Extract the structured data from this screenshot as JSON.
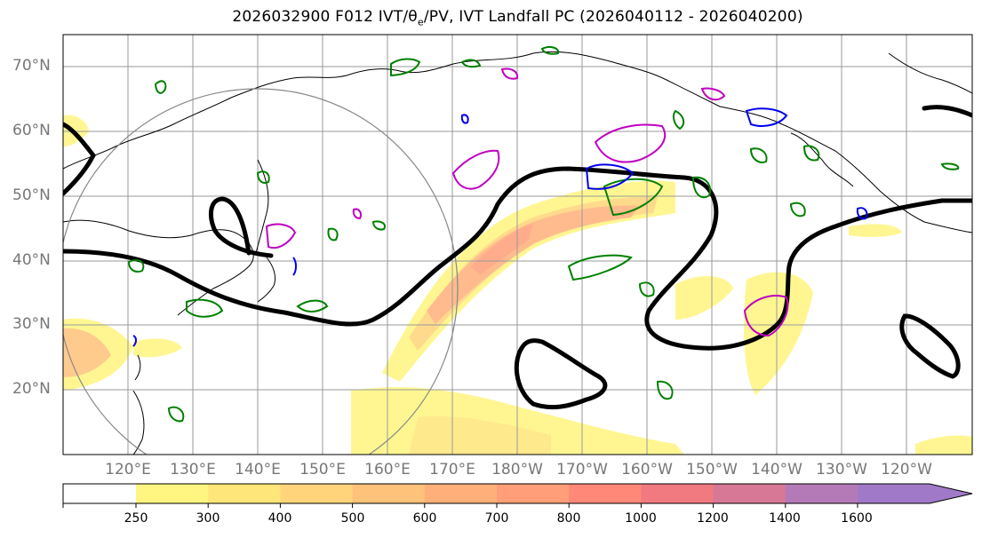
{
  "title": "2026032900 F012 IVT/θe/PV, IVT Landfall PC (2026040112 - 2026040200)",
  "map": {
    "projection": "PlateCarree",
    "lon_range": "110E - 110W",
    "lat_range": "10N - 75N",
    "lat_labels": [
      "70°N",
      "60°N",
      "50°N",
      "40°N",
      "30°N",
      "20°N"
    ],
    "lon_labels": [
      "120°E",
      "130°E",
      "140°E",
      "150°E",
      "160°E",
      "170°E",
      "180°W",
      "170°W",
      "160°W",
      "150°W",
      "140°W",
      "130°W",
      "120°W"
    ],
    "gridlines": true,
    "contours": {
      "theta_e": {
        "color": "#000000"
      },
      "pv_green": {
        "color": "#008000"
      },
      "pv_blue": {
        "color": "#0000ee"
      },
      "pv_magenta": {
        "color": "#c000c0"
      }
    },
    "range_circle_color": "#888888"
  },
  "colorbar": {
    "ticks": [
      "250",
      "300",
      "400",
      "500",
      "600",
      "700",
      "800",
      "1000",
      "1200",
      "1400",
      "1600"
    ],
    "colors": [
      "#fff580",
      "#ffe67a",
      "#ffd47a",
      "#ffc27a",
      "#ffb07a",
      "#ff9e78",
      "#ff8878",
      "#f07a80",
      "#d67896",
      "#b47ab8",
      "#a07ac8"
    ],
    "extend": "max"
  }
}
